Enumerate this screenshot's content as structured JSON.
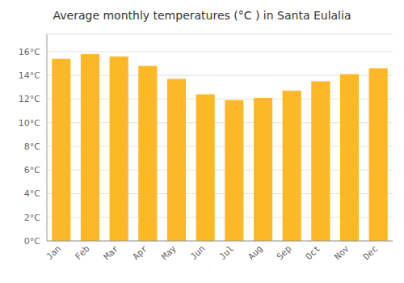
{
  "chart_data": {
    "type": "bar",
    "title": "Average monthly temperatures (°C ) in Santa Eulalia",
    "categories": [
      "Jan",
      "Feb",
      "Mar",
      "Apr",
      "May",
      "Jun",
      "Jul",
      "Aug",
      "Sep",
      "Oct",
      "Nov",
      "Dec"
    ],
    "values": [
      15.4,
      15.8,
      15.6,
      14.8,
      13.7,
      12.4,
      11.9,
      12.1,
      12.7,
      13.5,
      14.1,
      14.6
    ],
    "color": "#FDB827",
    "ylim": [
      0,
      17.5
    ],
    "yticks": [
      {
        "value": 0,
        "label": "0°C"
      },
      {
        "value": 2,
        "label": "2°C"
      },
      {
        "value": 4,
        "label": "4°C"
      },
      {
        "value": 6,
        "label": "6°C"
      },
      {
        "value": 8,
        "label": "8°C"
      },
      {
        "value": 10,
        "label": "10°C"
      },
      {
        "value": 12,
        "label": "12°C"
      },
      {
        "value": 14,
        "label": "14°C"
      },
      {
        "value": 16,
        "label": "16°C"
      }
    ],
    "grid": true
  }
}
